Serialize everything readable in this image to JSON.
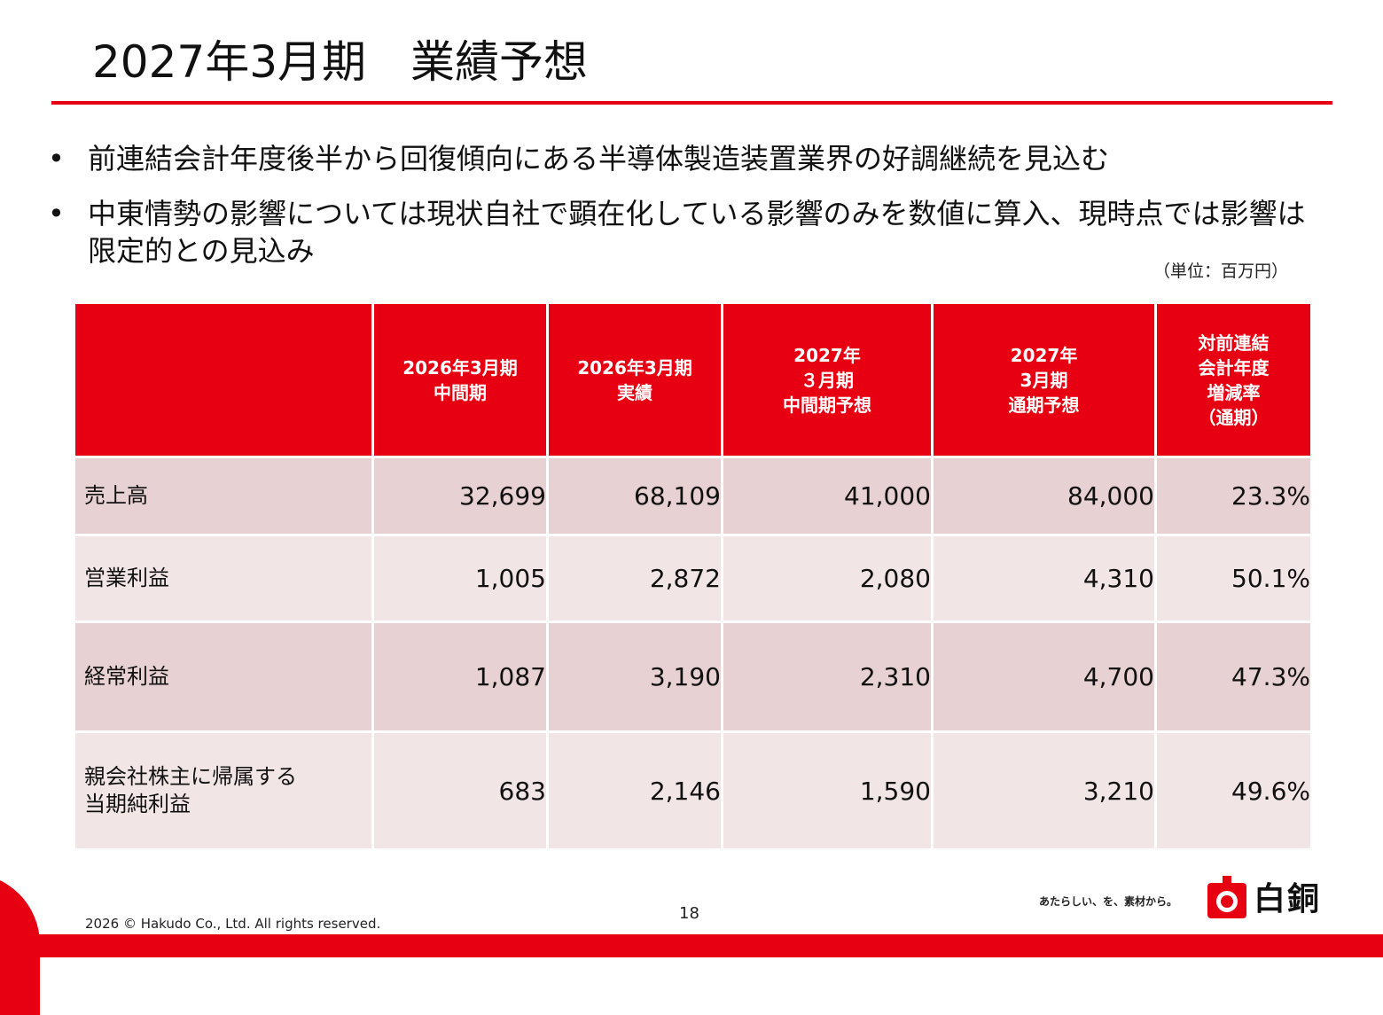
{
  "slide": {
    "title": "2027年3月期　業績予想",
    "bullets": [
      "前連結会計年度後半から回復傾向にある半導体製造装置業界の好調継続を見込む",
      "中東情勢の影響については現状自社で顕在化している影響のみを数値に算入、現時点では影響は限定的との見込み"
    ],
    "bullet_glyph": "•",
    "unit": "（単位：百万円）"
  },
  "table": {
    "headers": [
      "",
      "2026年3月期\n中間期",
      "2026年3月期\n実績",
      "2027年\n３月期\n中間期予想",
      "2027年\n3月期\n通期予想",
      "対前連結\n会計年度\n増減率\n（通期）"
    ],
    "rows": [
      {
        "label": "売上高",
        "values": [
          "32,699",
          "68,109",
          "41,000",
          "84,000",
          "23.3%"
        ]
      },
      {
        "label": "営業利益",
        "values": [
          "1,005",
          "2,872",
          "2,080",
          "4,310",
          "50.1%"
        ]
      },
      {
        "label": "経常利益",
        "values": [
          "1,087",
          "3,190",
          "2,310",
          "4,700",
          "47.3%"
        ]
      },
      {
        "label": "親会社株主に帰属する\n当期純利益",
        "values": [
          "683",
          "2,146",
          "1,590",
          "3,210",
          "49.6%"
        ]
      }
    ]
  },
  "footer": {
    "copyright": "2026 © Hakudo Co., Ltd. All rights reserved.",
    "page_number": "18",
    "tagline": "あたらしい、を、素材から。",
    "logo_text": "白銅"
  },
  "colors": {
    "accent": "#e60012",
    "row_dark": "#e8d1d2",
    "row_light": "#f2e5e5"
  },
  "icons": {
    "logo": "hakudo-logo-icon"
  }
}
